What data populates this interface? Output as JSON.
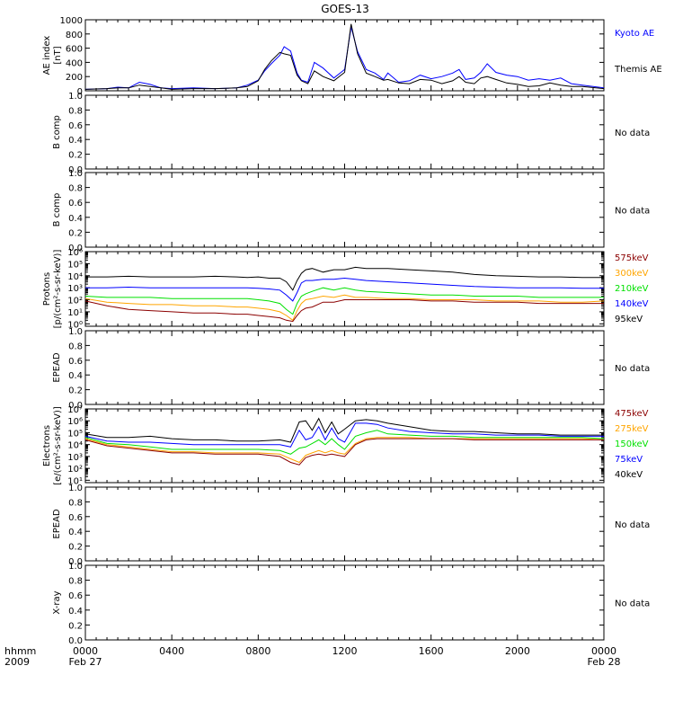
{
  "title": "GOES-13",
  "no_data_label": "No data",
  "x_axis": {
    "row_label": "hhmm",
    "year": "2009",
    "ticks": [
      "0000",
      "0400",
      "0800",
      "1200",
      "1600",
      "2000",
      "0000"
    ],
    "date_labels": [
      "Feb 27",
      "Feb 28"
    ]
  },
  "colors": {
    "black": "#000000",
    "blue": "#0000ff",
    "green": "#00e000",
    "orange": "#ffa500",
    "darkred": "#8b0000"
  },
  "chart_data": [
    {
      "type": "line",
      "panel": "ae",
      "ylabel": [
        "AE index",
        "[nT]"
      ],
      "ylim": [
        0,
        1000
      ],
      "yticks": [
        "0",
        "200",
        "400",
        "600",
        "800",
        "1000"
      ],
      "x_unit": "hours after 0000 UT Feb 27",
      "x": [
        0,
        1,
        1.5,
        2,
        2.5,
        3,
        3.5,
        4,
        5,
        6,
        7,
        7.5,
        8,
        8.3,
        8.6,
        9,
        9.2,
        9.5,
        9.8,
        10,
        10.3,
        10.6,
        11,
        11.5,
        12,
        12.3,
        12.6,
        13,
        13.4,
        13.8,
        14,
        14.5,
        15,
        15.5,
        16,
        16.5,
        17,
        17.3,
        17.6,
        18,
        18.3,
        18.6,
        19,
        19.5,
        20,
        20.5,
        21,
        21.5,
        22,
        22.5,
        23,
        24
      ],
      "series": [
        {
          "name": "Kyoto AE",
          "color": "#0000ff",
          "values": [
            20,
            30,
            50,
            40,
            120,
            90,
            40,
            30,
            40,
            30,
            40,
            80,
            150,
            280,
            380,
            500,
            620,
            560,
            250,
            150,
            120,
            400,
            320,
            180,
            300,
            900,
            550,
            300,
            250,
            160,
            250,
            120,
            140,
            220,
            170,
            200,
            250,
            300,
            160,
            180,
            260,
            380,
            260,
            220,
            200,
            150,
            170,
            150,
            180,
            100,
            80,
            40
          ]
        },
        {
          "name": "Themis AE",
          "color": "#000000",
          "values": [
            20,
            30,
            40,
            40,
            80,
            60,
            40,
            20,
            30,
            30,
            40,
            60,
            140,
            300,
            420,
            540,
            520,
            500,
            220,
            140,
            100,
            280,
            200,
            140,
            260,
            940,
            520,
            250,
            200,
            150,
            160,
            110,
            100,
            160,
            150,
            100,
            140,
            200,
            120,
            100,
            180,
            200,
            160,
            110,
            90,
            60,
            70,
            110,
            80,
            60,
            60,
            30
          ]
        }
      ]
    },
    {
      "type": "line",
      "panel": "protons",
      "ylabel": [
        "Protons",
        "[p/(cm²-s-sr-keV)]"
      ],
      "yscale": "log",
      "ylim_log10": [
        -0.2,
        6
      ],
      "yticks": [
        "10⁰",
        "10¹",
        "10²",
        "10³",
        "10⁴",
        "10⁵",
        "10⁶"
      ],
      "x": [
        0,
        1,
        2,
        3,
        4,
        5,
        6,
        7,
        7.5,
        8,
        8.5,
        9,
        9.3,
        9.6,
        9.8,
        10,
        10.2,
        10.5,
        11,
        11.5,
        12,
        12.5,
        13,
        14,
        15,
        16,
        17,
        18,
        19,
        20,
        21,
        22,
        23,
        24
      ],
      "series": [
        {
          "name": "95keV",
          "color": "#000000",
          "values": [
            3.9,
            3.9,
            3.95,
            3.9,
            3.9,
            3.9,
            3.95,
            3.9,
            3.85,
            3.9,
            3.8,
            3.8,
            3.5,
            2.8,
            3.6,
            4.2,
            4.5,
            4.6,
            4.3,
            4.5,
            4.5,
            4.7,
            4.6,
            4.6,
            4.5,
            4.4,
            4.3,
            4.1,
            4.0,
            3.95,
            3.9,
            3.9,
            3.85,
            3.85
          ]
        },
        {
          "name": "140keV",
          "color": "#0000ff",
          "values": [
            3.0,
            3.0,
            3.05,
            3.0,
            3.0,
            3.0,
            3.0,
            3.0,
            3.0,
            2.95,
            2.9,
            2.8,
            2.4,
            1.9,
            2.6,
            3.4,
            3.6,
            3.6,
            3.7,
            3.7,
            3.8,
            3.7,
            3.6,
            3.5,
            3.4,
            3.3,
            3.2,
            3.1,
            3.05,
            3.0,
            3.0,
            3.0,
            2.95,
            2.95
          ]
        },
        {
          "name": "210keV",
          "color": "#00e000",
          "values": [
            2.3,
            2.2,
            2.2,
            2.2,
            2.1,
            2.1,
            2.1,
            2.1,
            2.1,
            2.0,
            1.9,
            1.7,
            1.2,
            0.8,
            1.7,
            2.3,
            2.5,
            2.7,
            3.0,
            2.8,
            3.0,
            2.8,
            2.7,
            2.6,
            2.5,
            2.4,
            2.4,
            2.3,
            2.3,
            2.3,
            2.2,
            2.2,
            2.2,
            2.2
          ]
        },
        {
          "name": "300keV",
          "color": "#ffa500",
          "values": [
            2.1,
            1.8,
            1.7,
            1.6,
            1.6,
            1.5,
            1.5,
            1.4,
            1.4,
            1.3,
            1.2,
            1.0,
            0.7,
            0.3,
            1.1,
            1.7,
            2.0,
            2.1,
            2.3,
            2.2,
            2.4,
            2.2,
            2.2,
            2.1,
            2.1,
            2.0,
            2.0,
            2.0,
            1.9,
            1.9,
            1.9,
            1.8,
            1.8,
            1.9
          ]
        },
        {
          "name": "575keV",
          "color": "#8b0000",
          "values": [
            1.9,
            1.5,
            1.2,
            1.1,
            1.0,
            0.9,
            0.9,
            0.8,
            0.8,
            0.7,
            0.6,
            0.5,
            0.3,
            0.2,
            0.7,
            1.1,
            1.3,
            1.4,
            1.8,
            1.8,
            2.0,
            2.0,
            2.0,
            2.0,
            2.0,
            1.9,
            1.9,
            1.8,
            1.8,
            1.8,
            1.7,
            1.7,
            1.7,
            1.7
          ]
        }
      ]
    },
    {
      "type": "line",
      "panel": "electrons",
      "ylabel": [
        "Electrons",
        "[e/(cm²-s-sr-keV)]"
      ],
      "yscale": "log",
      "ylim_log10": [
        0.8,
        7
      ],
      "yticks": [
        "10¹",
        "10²",
        "10³",
        "10⁴",
        "10⁵",
        "10⁶",
        "10⁷"
      ],
      "x": [
        0,
        1,
        2,
        3,
        4,
        5,
        6,
        7,
        8,
        9,
        9.5,
        9.9,
        10.2,
        10.5,
        10.8,
        11.1,
        11.4,
        11.7,
        12,
        12.5,
        13,
        13.5,
        14,
        15,
        16,
        17,
        18,
        19,
        20,
        21,
        22,
        23,
        24
      ],
      "series": [
        {
          "name": "40keV",
          "color": "#000000",
          "values": [
            4.9,
            4.6,
            4.6,
            4.7,
            4.5,
            4.4,
            4.4,
            4.3,
            4.3,
            4.4,
            4.2,
            5.9,
            6.0,
            5.2,
            6.2,
            5.0,
            5.9,
            4.9,
            5.3,
            6.0,
            6.1,
            6.0,
            5.8,
            5.5,
            5.2,
            5.1,
            5.1,
            5.0,
            4.9,
            4.9,
            4.8,
            4.8,
            4.8
          ]
        },
        {
          "name": "75keV",
          "color": "#0000ff",
          "values": [
            4.7,
            4.3,
            4.2,
            4.2,
            4.1,
            4.0,
            4.0,
            4.0,
            4.0,
            4.0,
            3.8,
            5.2,
            4.4,
            4.6,
            5.5,
            4.4,
            5.4,
            4.5,
            4.2,
            5.8,
            5.8,
            5.7,
            5.4,
            5.1,
            5.0,
            4.9,
            4.9,
            4.8,
            4.8,
            4.8,
            4.7,
            4.7,
            4.7
          ]
        },
        {
          "name": "150keV",
          "color": "#00e000",
          "values": [
            4.6,
            4.1,
            4.0,
            3.8,
            3.6,
            3.6,
            3.6,
            3.6,
            3.6,
            3.5,
            3.2,
            3.7,
            3.8,
            4.1,
            4.4,
            4.0,
            4.5,
            4.0,
            3.6,
            4.7,
            5.0,
            5.2,
            4.9,
            4.8,
            4.7,
            4.7,
            4.6,
            4.6,
            4.6,
            4.6,
            4.6,
            4.6,
            4.5
          ]
        },
        {
          "name": "275keV",
          "color": "#ffa500",
          "values": [
            4.5,
            4.0,
            3.8,
            3.6,
            3.4,
            3.4,
            3.3,
            3.3,
            3.3,
            3.2,
            2.8,
            2.5,
            3.1,
            3.3,
            3.5,
            3.3,
            3.5,
            3.3,
            3.2,
            4.1,
            4.5,
            4.6,
            4.6,
            4.6,
            4.5,
            4.5,
            4.5,
            4.5,
            4.5,
            4.5,
            4.5,
            4.5,
            4.4
          ]
        },
        {
          "name": "475keV",
          "color": "#8b0000",
          "values": [
            4.4,
            3.9,
            3.7,
            3.5,
            3.3,
            3.3,
            3.2,
            3.2,
            3.2,
            3.0,
            2.5,
            2.3,
            2.9,
            3.1,
            3.2,
            3.1,
            3.2,
            3.1,
            3.0,
            4.0,
            4.4,
            4.5,
            4.5,
            4.5,
            4.5,
            4.5,
            4.4,
            4.4,
            4.4,
            4.4,
            4.4,
            4.4,
            4.4
          ]
        }
      ]
    }
  ],
  "empty_panels": [
    {
      "name": "b-comp-1",
      "ylabel": "B comp",
      "yticks": [
        "0.0",
        "0.2",
        "0.4",
        "0.6",
        "0.8",
        "1.0"
      ]
    },
    {
      "name": "b-comp-2",
      "ylabel": "B comp",
      "yticks": [
        "0.0",
        "0.2",
        "0.4",
        "0.6",
        "0.8",
        "1.0"
      ]
    },
    {
      "name": "epead-1",
      "ylabel": "EPEAD",
      "yticks": [
        "0.0",
        "0.2",
        "0.4",
        "0.6",
        "0.8",
        "1.0"
      ]
    },
    {
      "name": "epead-2",
      "ylabel": "EPEAD",
      "yticks": [
        "0.0",
        "0.2",
        "0.4",
        "0.6",
        "0.8",
        "1.0"
      ]
    },
    {
      "name": "x-ray",
      "ylabel": "X-ray",
      "yticks": [
        "0.0",
        "0.2",
        "0.4",
        "0.6",
        "0.8",
        "1.0"
      ]
    }
  ]
}
